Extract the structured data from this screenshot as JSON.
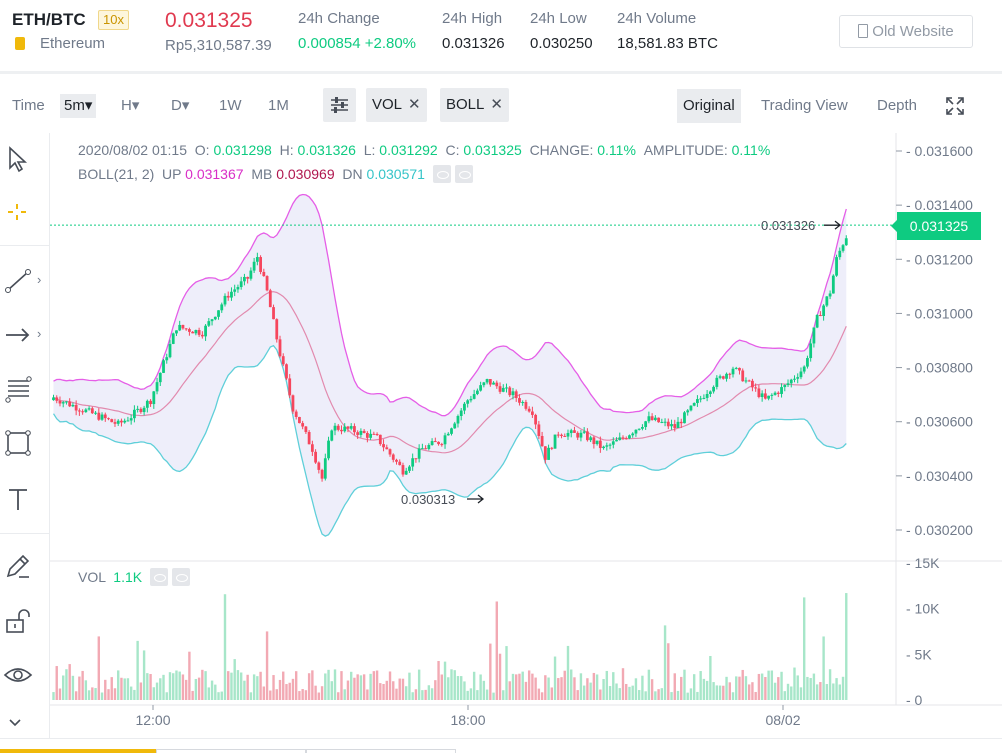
{
  "header": {
    "pair": "ETH/BTC",
    "leverage": "10x",
    "coin_name": "Ethereum",
    "last_price": "0.031325",
    "fiat_price": "Rp5,310,587.39",
    "stats": [
      {
        "label": "24h Change",
        "value": "0.000854 +2.80%",
        "color": "#0ecb81"
      },
      {
        "label": "24h High",
        "value": "0.031326"
      },
      {
        "label": "24h Low",
        "value": "0.030250"
      },
      {
        "label": "24h Volume",
        "value": "18,581.83 BTC"
      }
    ],
    "old_website": "Old Website"
  },
  "toolbar": {
    "time_label": "Time",
    "intervals": [
      "5m▾",
      "H▾",
      "D▾",
      "1W",
      "1M"
    ],
    "active_interval": "5m▾",
    "indicators": [
      {
        "label": "VOL",
        "close": "✕"
      },
      {
        "label": "BOLL",
        "close": "✕"
      }
    ],
    "views": [
      "Original",
      "Trading View",
      "Depth"
    ],
    "active_view": "Original"
  },
  "tools": [
    "cursor",
    "crosshair",
    "trend-line",
    "arrow",
    "fib-lines",
    "rectangle",
    "text",
    "brush",
    "lock",
    "eye",
    "collapse"
  ],
  "overlay": {
    "line1": {
      "date": "2020/08/02 01:15",
      "o_label": "O:",
      "o": "0.031298",
      "h_label": "H:",
      "h": "0.031326",
      "l_label": "L:",
      "l": "0.031292",
      "c_label": "C:",
      "c": "0.031325",
      "change_label": "CHANGE:",
      "change": "0.11%",
      "amp_label": "AMPLITUDE:",
      "amp": "0.11%"
    },
    "line2": {
      "label": "BOLL(21, 2)",
      "up_label": "UP",
      "up": "0.031367",
      "mb_label": "MB",
      "mb": "0.030969",
      "dn_label": "DN",
      "dn": "0.030571"
    },
    "vol": {
      "label": "VOL",
      "value": "1.1K"
    }
  },
  "price_tag": "0.031325",
  "colors": {
    "up": "#0ecb81",
    "down": "#f6465d",
    "boll_up": "#e55ee7",
    "boll_mb": "#e28aae",
    "boll_dn": "#5fcfd9",
    "band": "#eeeefa"
  },
  "chart_data": {
    "type": "candlestick",
    "x_ticks": [
      "12:00",
      "18:00",
      "08/02"
    ],
    "price_ticks": [
      "0.031600",
      "0.031400",
      "0.031200",
      "0.031000",
      "0.030800",
      "0.030600",
      "0.030400",
      "0.030200"
    ],
    "vol_ticks": [
      "15K",
      "10K",
      "5K",
      "0"
    ],
    "ylim": [
      0.0301,
      0.03163
    ],
    "annotations": [
      {
        "text": "0.031326",
        "kind": "high"
      },
      {
        "text": "0.030313",
        "kind": "low"
      }
    ],
    "price_path": [
      [
        0,
        0.03069
      ],
      [
        10,
        0.03064
      ],
      [
        20,
        0.03059
      ],
      [
        24,
        0.03062
      ],
      [
        30,
        0.03068
      ],
      [
        38,
        0.03095
      ],
      [
        46,
        0.03093
      ],
      [
        54,
        0.03107
      ],
      [
        60,
        0.03113
      ],
      [
        63,
        0.03121
      ],
      [
        66,
        0.03108
      ],
      [
        70,
        0.03085
      ],
      [
        74,
        0.03065
      ],
      [
        80,
        0.0305
      ],
      [
        83,
        0.03039
      ],
      [
        86,
        0.03058
      ],
      [
        92,
        0.03057
      ],
      [
        100,
        0.03054
      ],
      [
        108,
        0.03042
      ],
      [
        114,
        0.0305
      ],
      [
        120,
        0.03053
      ],
      [
        128,
        0.03068
      ],
      [
        134,
        0.03075
      ],
      [
        142,
        0.0307
      ],
      [
        148,
        0.03064
      ],
      [
        152,
        0.03047
      ],
      [
        156,
        0.03056
      ],
      [
        164,
        0.03055
      ],
      [
        170,
        0.0305
      ],
      [
        176,
        0.03054
      ],
      [
        184,
        0.03061
      ],
      [
        192,
        0.03058
      ],
      [
        198,
        0.03066
      ],
      [
        204,
        0.03074
      ],
      [
        210,
        0.0308
      ],
      [
        214,
        0.03075
      ],
      [
        220,
        0.03068
      ],
      [
        226,
        0.03073
      ],
      [
        232,
        0.0308
      ],
      [
        236,
        0.03098
      ],
      [
        240,
        0.03108
      ],
      [
        242,
        0.0312
      ],
      [
        244,
        0.03126
      ],
      [
        246,
        0.03131
      ]
    ]
  }
}
